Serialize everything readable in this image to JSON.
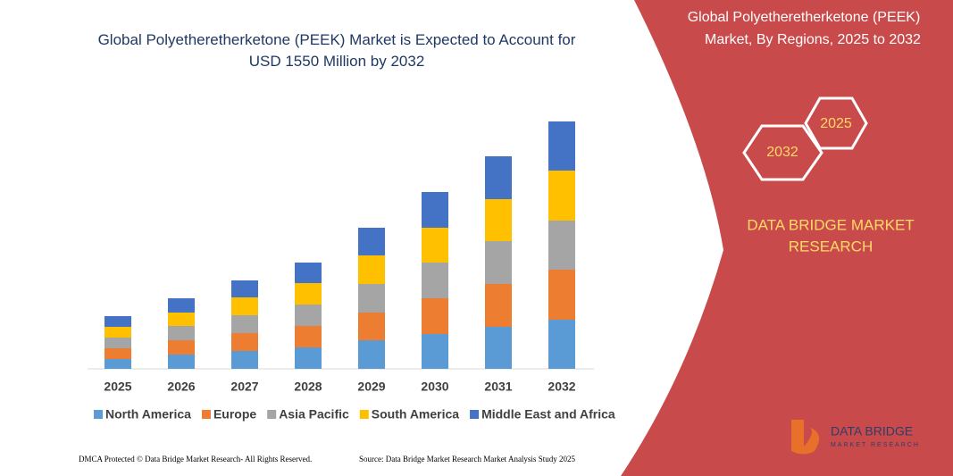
{
  "chart_data": {
    "type": "stacked_bar",
    "title": "Global Polyetheretherketone (PEEK) Market is Expected to Account for USD 1550 Million by 2032",
    "categories": [
      "2025",
      "2026",
      "2027",
      "2028",
      "2029",
      "2030",
      "2031",
      "2032"
    ],
    "series": [
      {
        "name": "North America",
        "color": "#5b9bd5",
        "values": [
          11,
          16,
          20,
          24,
          32,
          39,
          47,
          55
        ]
      },
      {
        "name": "Europe",
        "color": "#ed7d31",
        "values": [
          12,
          16,
          20,
          24,
          31,
          40,
          48,
          56
        ]
      },
      {
        "name": "Asia Pacific",
        "color": "#a5a5a5",
        "values": [
          12,
          16,
          20,
          24,
          32,
          40,
          48,
          55
        ]
      },
      {
        "name": "South America",
        "color": "#ffc000",
        "values": [
          12,
          15,
          20,
          24,
          32,
          39,
          47,
          56
        ]
      },
      {
        "name": "Middle East and Africa",
        "color": "#4472c4",
        "values": [
          12,
          16,
          19,
          23,
          31,
          40,
          48,
          55
        ]
      }
    ]
  },
  "panel": {
    "title_line1": "Global Polyetheretherketone (PEEK)",
    "title_line2": "Market, By Regions, 2025 to 2032",
    "hex_a": "2025",
    "hex_b": "2032",
    "brand_line1": "DATA BRIDGE MARKET",
    "brand_line2": "RESEARCH"
  },
  "footer": {
    "left": "DMCA Protected © Data Bridge Market Research- All Rights Reserved.",
    "right": "Source: Data Bridge Market Research Market Analysis Study 2025"
  },
  "logo": {
    "name": "DATA BRIDGE",
    "tagline": "MARKET RESEARCH"
  }
}
